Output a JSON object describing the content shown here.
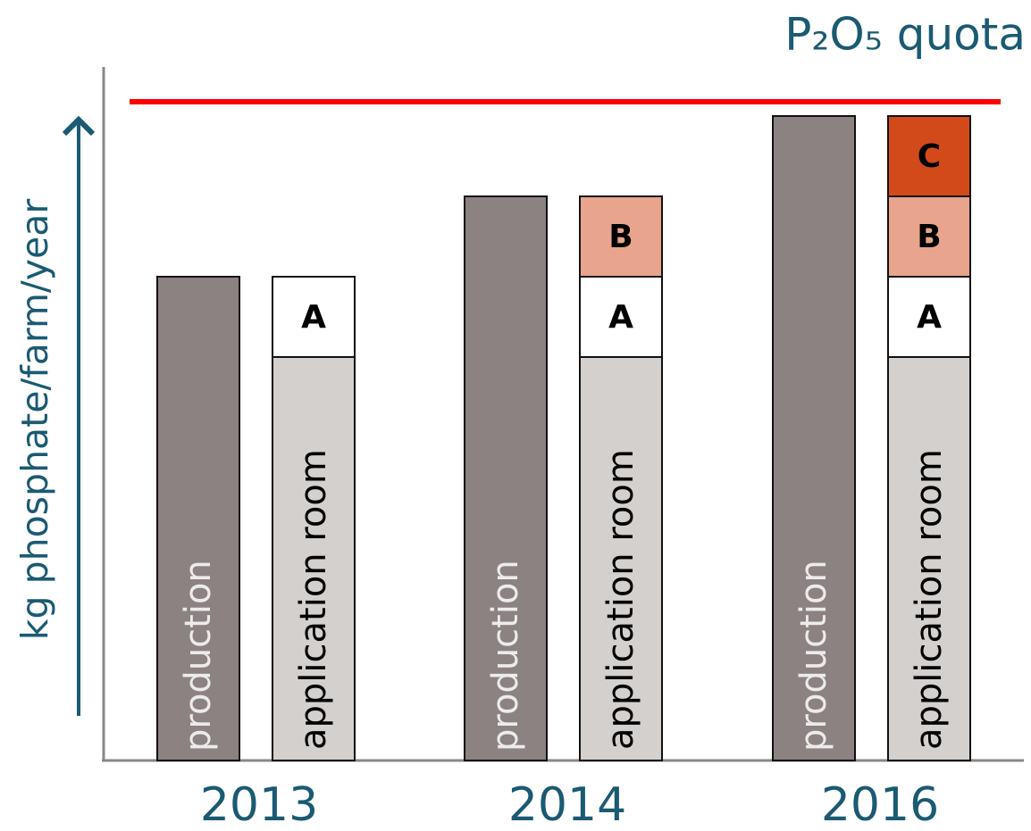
{
  "title": "P₂O₅ quota",
  "y_axis_label": "kg phosphate/farm/year",
  "groups": [
    {
      "year": "2013",
      "production": "production",
      "stack": [
        "application room",
        "A"
      ]
    },
    {
      "year": "2014",
      "production": "production",
      "stack": [
        "application room",
        "A",
        "B"
      ]
    },
    {
      "year": "2016",
      "production": "production",
      "stack": [
        "application room",
        "A",
        "B",
        "C"
      ]
    }
  ]
}
